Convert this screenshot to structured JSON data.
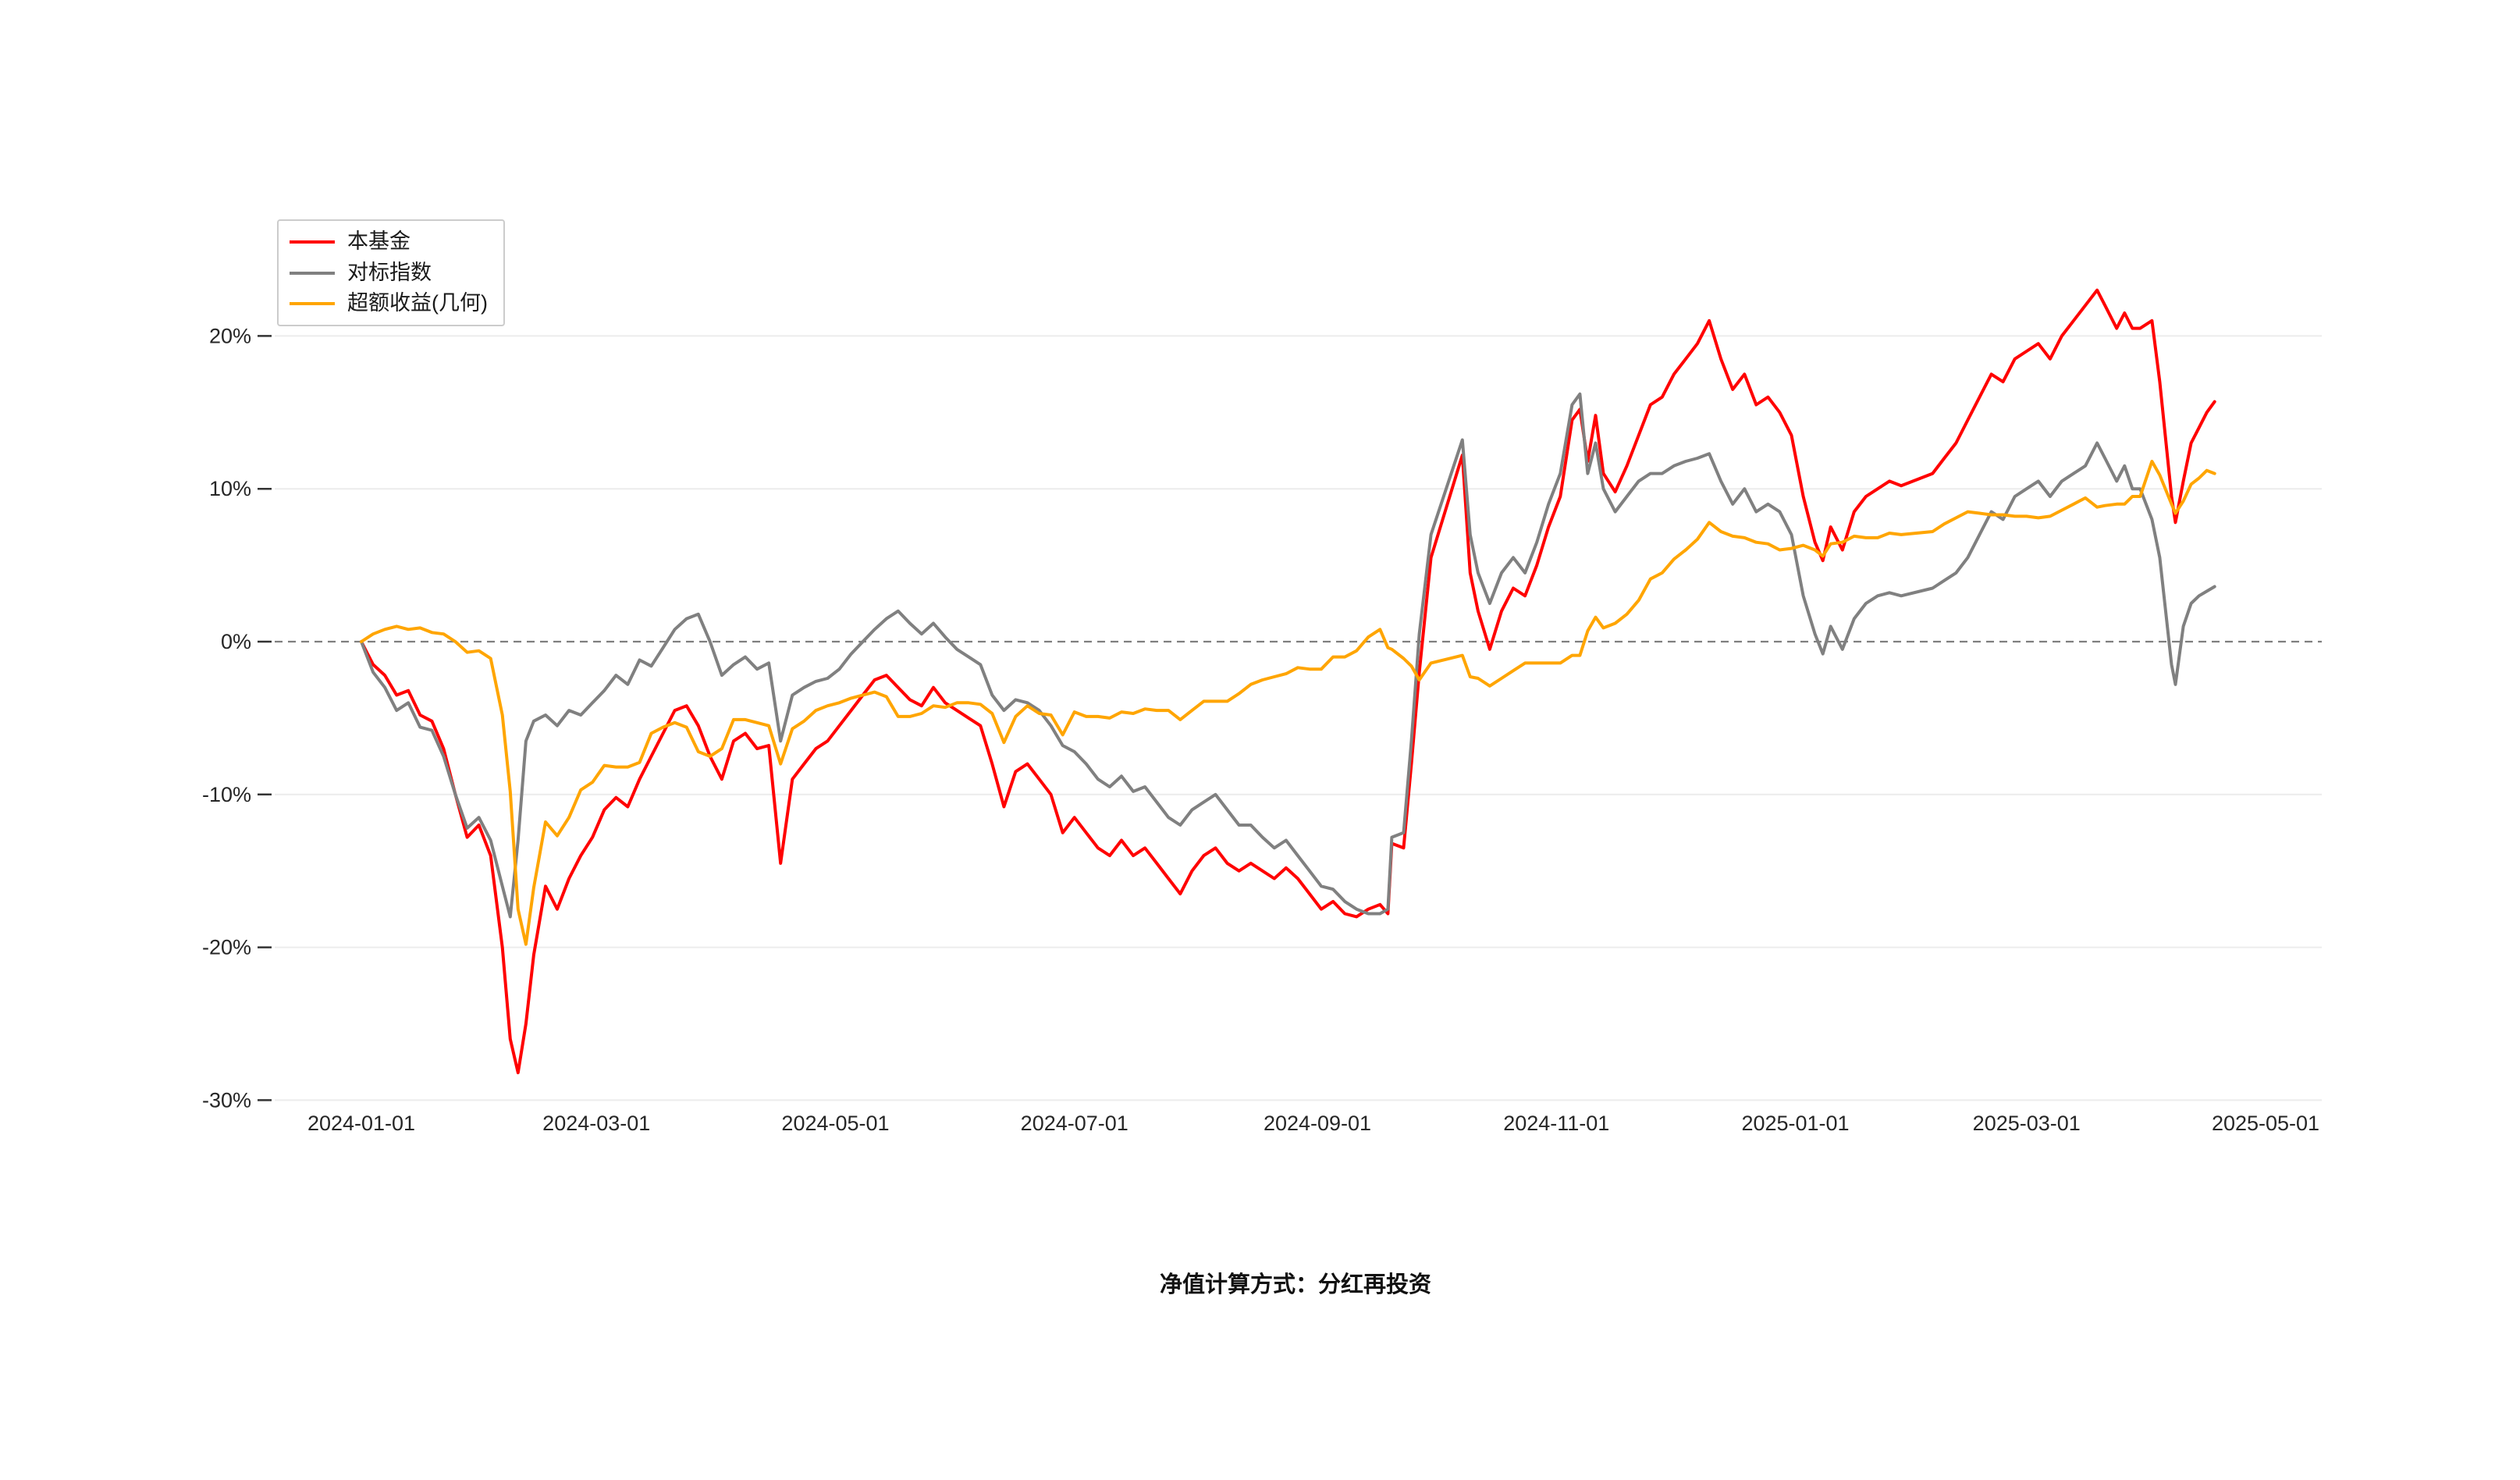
{
  "page": {
    "background": "#ffffff"
  },
  "caption": "净值计算方式：分红再投资",
  "chart_data": {
    "type": "line",
    "title": "",
    "xlabel": "",
    "ylabel": "",
    "x_type": "date",
    "x_range": [
      "2024-01-01",
      "2025-05-01"
    ],
    "ylim": [
      -30,
      25
    ],
    "grid": {
      "horizontal": true,
      "vertical": false,
      "color": "#ececec"
    },
    "zero_line": {
      "value": 0,
      "style": "dashed",
      "color": "#7f7f7f"
    },
    "y_ticks": [
      {
        "value": 20,
        "label": "20%"
      },
      {
        "value": 10,
        "label": "10%"
      },
      {
        "value": 0,
        "label": "0%"
      },
      {
        "value": -10,
        "label": "-10%"
      },
      {
        "value": -20,
        "label": "-20%"
      },
      {
        "value": -30,
        "label": "-30%"
      }
    ],
    "x_ticks": [
      "2024-01-01",
      "2024-03-01",
      "2024-05-01",
      "2024-07-01",
      "2024-09-01",
      "2024-11-01",
      "2025-01-01",
      "2025-03-01",
      "2025-05-01"
    ],
    "legend": {
      "position": "top-left",
      "entries": [
        {
          "label": "本基金",
          "color": "#ff0000"
        },
        {
          "label": "对标指数",
          "color": "#808080"
        },
        {
          "label": "超额收益(几何)",
          "color": "#ffa500"
        }
      ]
    },
    "dates": [
      "2024-01-01",
      "2024-01-04",
      "2024-01-07",
      "2024-01-10",
      "2024-01-13",
      "2024-01-16",
      "2024-01-19",
      "2024-01-22",
      "2024-01-25",
      "2024-01-28",
      "2024-01-31",
      "2024-02-03",
      "2024-02-06",
      "2024-02-08",
      "2024-02-10",
      "2024-02-12",
      "2024-02-14",
      "2024-02-17",
      "2024-02-20",
      "2024-02-23",
      "2024-02-26",
      "2024-02-29",
      "2024-03-03",
      "2024-03-06",
      "2024-03-09",
      "2024-03-12",
      "2024-03-15",
      "2024-03-18",
      "2024-03-21",
      "2024-03-24",
      "2024-03-27",
      "2024-03-30",
      "2024-04-02",
      "2024-04-05",
      "2024-04-08",
      "2024-04-11",
      "2024-04-14",
      "2024-04-17",
      "2024-04-20",
      "2024-04-23",
      "2024-04-26",
      "2024-04-29",
      "2024-05-02",
      "2024-05-05",
      "2024-05-08",
      "2024-05-11",
      "2024-05-14",
      "2024-05-17",
      "2024-05-20",
      "2024-05-23",
      "2024-05-26",
      "2024-05-29",
      "2024-06-01",
      "2024-06-04",
      "2024-06-07",
      "2024-06-10",
      "2024-06-13",
      "2024-06-16",
      "2024-06-19",
      "2024-06-22",
      "2024-06-25",
      "2024-06-28",
      "2024-07-01",
      "2024-07-04",
      "2024-07-07",
      "2024-07-10",
      "2024-07-13",
      "2024-07-16",
      "2024-07-19",
      "2024-07-22",
      "2024-07-25",
      "2024-07-28",
      "2024-07-31",
      "2024-08-03",
      "2024-08-06",
      "2024-08-09",
      "2024-08-12",
      "2024-08-15",
      "2024-08-18",
      "2024-08-21",
      "2024-08-24",
      "2024-08-27",
      "2024-08-30",
      "2024-09-02",
      "2024-09-05",
      "2024-09-08",
      "2024-09-11",
      "2024-09-14",
      "2024-09-17",
      "2024-09-19",
      "2024-09-20",
      "2024-09-23",
      "2024-09-25",
      "2024-09-27",
      "2024-09-30",
      "2024-10-08",
      "2024-10-10",
      "2024-10-12",
      "2024-10-15",
      "2024-10-18",
      "2024-10-21",
      "2024-10-24",
      "2024-10-27",
      "2024-10-30",
      "2024-11-02",
      "2024-11-05",
      "2024-11-07",
      "2024-11-09",
      "2024-11-11",
      "2024-11-13",
      "2024-11-16",
      "2024-11-19",
      "2024-11-22",
      "2024-11-25",
      "2024-11-28",
      "2024-12-01",
      "2024-12-04",
      "2024-12-07",
      "2024-12-10",
      "2024-12-13",
      "2024-12-16",
      "2024-12-19",
      "2024-12-22",
      "2024-12-25",
      "2024-12-28",
      "2024-12-31",
      "2025-01-03",
      "2025-01-06",
      "2025-01-08",
      "2025-01-10",
      "2025-01-13",
      "2025-01-16",
      "2025-01-19",
      "2025-01-22",
      "2025-01-25",
      "2025-01-28",
      "2025-02-05",
      "2025-02-08",
      "2025-02-11",
      "2025-02-14",
      "2025-02-17",
      "2025-02-20",
      "2025-02-23",
      "2025-02-26",
      "2025-03-01",
      "2025-03-04",
      "2025-03-07",
      "2025-03-10",
      "2025-03-13",
      "2025-03-16",
      "2025-03-19",
      "2025-03-21",
      "2025-03-24",
      "2025-03-26",
      "2025-03-28",
      "2025-03-30",
      "2025-04-02",
      "2025-04-04",
      "2025-04-07",
      "2025-04-08",
      "2025-04-10",
      "2025-04-12",
      "2025-04-14",
      "2025-04-16",
      "2025-04-18"
    ],
    "series": [
      {
        "id": "fund-line",
        "name": "本基金",
        "color": "#ff0000",
        "values": [
          0,
          -1.5,
          -2.2,
          -3.5,
          -3.2,
          -4.8,
          -5.2,
          -7,
          -10,
          -12.8,
          -12,
          -14,
          -20,
          -26,
          -28.2,
          -25,
          -20.5,
          -16,
          -17.5,
          -15.5,
          -14,
          -12.8,
          -11,
          -10.2,
          -10.8,
          -9,
          -7.5,
          -6,
          -4.5,
          -4.2,
          -5.5,
          -7.5,
          -9,
          -6.5,
          -6,
          -7,
          -6.8,
          -14.5,
          -9,
          -8,
          -7,
          -6.5,
          -5.5,
          -4.5,
          -3.5,
          -2.5,
          -2.2,
          -3,
          -3.8,
          -4.2,
          -3,
          -4,
          -4.5,
          -5,
          -5.5,
          -8,
          -10.8,
          -8.5,
          -8,
          -9,
          -10,
          -12.5,
          -11.5,
          -12.5,
          -13.5,
          -14,
          -13,
          -14,
          -13.5,
          -14.5,
          -15.5,
          -16.5,
          -15,
          -14,
          -13.5,
          -14.5,
          -15,
          -14.5,
          -15,
          -15.5,
          -14.8,
          -15.5,
          -16.5,
          -17.5,
          -17,
          -17.8,
          -18,
          -17.5,
          -17.2,
          -17.8,
          -13.2,
          -13.5,
          -8,
          -2,
          5.5,
          12.2,
          4.5,
          2,
          -0.5,
          2,
          3.5,
          3,
          5,
          7.5,
          9.5,
          14.5,
          15.2,
          11.8,
          14.8,
          11,
          9.8,
          11.5,
          13.5,
          15.5,
          16,
          17.5,
          18.5,
          19.5,
          21,
          18.5,
          16.5,
          17.5,
          15.5,
          16,
          15,
          13.5,
          9.5,
          6.5,
          5.3,
          7.5,
          6,
          8.5,
          9.5,
          10,
          10.5,
          10.2,
          11,
          12,
          13,
          14.5,
          16,
          17.5,
          17,
          18.5,
          19,
          19.5,
          18.5,
          20,
          21,
          22,
          23,
          22,
          20.5,
          21.5,
          20.5,
          20.5,
          21,
          17,
          9.5,
          7.8,
          10.5,
          13,
          14,
          15,
          15.7
        ]
      },
      {
        "id": "benchmark-line",
        "name": "对标指数",
        "color": "#808080",
        "values": [
          0,
          -2,
          -3,
          -4.5,
          -4,
          -5.6,
          -5.8,
          -7.5,
          -10,
          -12.2,
          -11.5,
          -13,
          -16,
          -18,
          -13,
          -6.5,
          -5.2,
          -4.8,
          -5.5,
          -4.5,
          -4.8,
          -4,
          -3.2,
          -2.2,
          -2.8,
          -1.2,
          -1.6,
          -0.4,
          0.8,
          1.5,
          1.8,
          0,
          -2.2,
          -1.5,
          -1,
          -1.8,
          -1.4,
          -6.5,
          -3.5,
          -3,
          -2.6,
          -2.4,
          -1.8,
          -0.8,
          0,
          0.8,
          1.5,
          2,
          1.2,
          0.5,
          1.2,
          0.3,
          -0.5,
          -1,
          -1.5,
          -3.5,
          -4.5,
          -3.8,
          -4,
          -4.5,
          -5.5,
          -6.8,
          -7.2,
          -8,
          -9,
          -9.5,
          -8.8,
          -9.8,
          -9.5,
          -10.5,
          -11.5,
          -12,
          -11,
          -10.5,
          -10,
          -11,
          -12,
          -12,
          -12.8,
          -13.5,
          -13,
          -14,
          -15,
          -16,
          -16.2,
          -17,
          -17.5,
          -17.8,
          -17.8,
          -17.5,
          -12.8,
          -12.5,
          -6.5,
          0.5,
          7,
          13.2,
          7,
          4.5,
          2.5,
          4.5,
          5.5,
          4.5,
          6.5,
          9,
          11,
          15.5,
          16.2,
          11,
          13,
          10,
          8.5,
          9.5,
          10.5,
          11,
          11,
          11.5,
          11.8,
          12,
          12.3,
          10.5,
          9,
          10,
          8.5,
          9,
          8.5,
          7,
          3,
          0.5,
          -0.8,
          1,
          -0.5,
          1.5,
          2.5,
          3,
          3.2,
          3,
          3.5,
          4,
          4.5,
          5.5,
          7,
          8.5,
          8,
          9.5,
          10,
          10.5,
          9.5,
          10.5,
          11,
          11.5,
          13,
          12,
          10.5,
          11.5,
          10,
          10,
          8,
          5.5,
          -1.5,
          -2.8,
          1,
          2.5,
          3,
          3.3,
          3.6
        ]
      },
      {
        "id": "excess-return-line",
        "name": "超额收益(几何)",
        "color": "#ffa500",
        "values": [
          0,
          0.5,
          0.8,
          1,
          0.8,
          0.9,
          0.6,
          0.5,
          0,
          -0.7,
          -0.6,
          -1.1,
          -4.8,
          -9.8,
          -17.5,
          -19.8,
          -16.1,
          -11.8,
          -12.7,
          -11.5,
          -9.7,
          -9.2,
          -8.1,
          -8.2,
          -8.2,
          -7.9,
          -6,
          -5.6,
          -5.3,
          -5.6,
          -7.2,
          -7.5,
          -7,
          -5.1,
          -5.1,
          -5.3,
          -5.5,
          -8,
          -5.7,
          -5.2,
          -4.5,
          -4.2,
          -4,
          -3.7,
          -3.5,
          -3.3,
          -3.6,
          -4.9,
          -4.9,
          -4.7,
          -4.2,
          -4.3,
          -4,
          -4,
          -4.1,
          -4.7,
          -6.6,
          -4.9,
          -4.2,
          -4.7,
          -4.8,
          -6.1,
          -4.6,
          -4.9,
          -4.9,
          -5,
          -4.6,
          -4.7,
          -4.4,
          -4.5,
          -4.5,
          -5.1,
          -4.5,
          -3.9,
          -3.9,
          -3.9,
          -3.4,
          -2.8,
          -2.5,
          -2.3,
          -2.1,
          -1.7,
          -1.8,
          -1.8,
          -1,
          -1,
          -0.6,
          0.3,
          0.8,
          -0.4,
          -0.5,
          -1.1,
          -1.6,
          -2.5,
          -1.4,
          -0.9,
          -2.3,
          -2.4,
          -2.9,
          -2.4,
          -1.9,
          -1.4,
          -1.4,
          -1.4,
          -1.4,
          -0.9,
          -0.9,
          0.7,
          1.6,
          0.9,
          1.2,
          1.8,
          2.7,
          4.1,
          4.5,
          5.4,
          6,
          6.7,
          7.8,
          7.2,
          6.9,
          6.8,
          6.5,
          6.4,
          6,
          6.1,
          6.3,
          6,
          5.6,
          6.4,
          6.5,
          6.9,
          6.8,
          6.8,
          7.1,
          7,
          7.2,
          7.7,
          8.1,
          8.5,
          8.4,
          8.3,
          8.3,
          8.2,
          8.2,
          8.1,
          8.2,
          8.6,
          9,
          9.4,
          8.8,
          8.9,
          9,
          9,
          9.5,
          9.5,
          11.8,
          10.9,
          9,
          8.4,
          9.2,
          10.3,
          10.7,
          11.2,
          11
        ]
      }
    ],
    "caption": "净值计算方式：分红再投资"
  }
}
